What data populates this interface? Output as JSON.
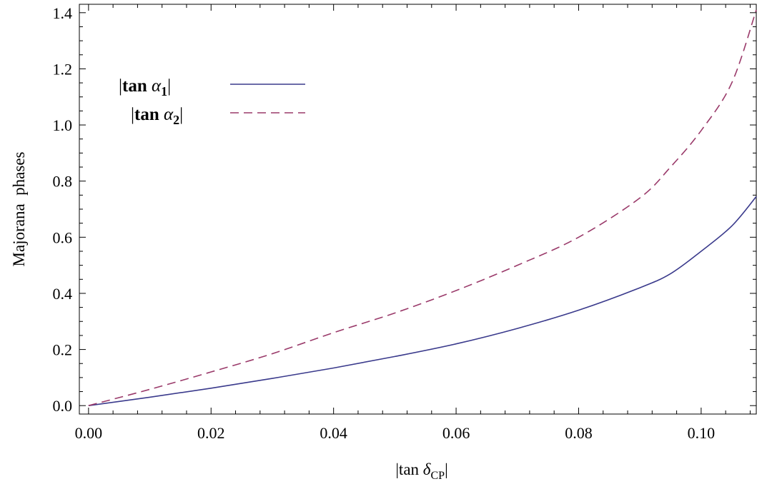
{
  "chart_data": {
    "type": "line",
    "xlabel": {
      "prefix": "|tan ",
      "symbol": "δ",
      "subscript": "CP",
      "suffix": "|"
    },
    "ylabel": "Majorana  phases",
    "xlim": [
      -0.0015,
      0.109
    ],
    "ylim": [
      -0.03,
      1.43
    ],
    "xticks": [
      "0.00",
      "0.02",
      "0.04",
      "0.06",
      "0.08",
      "0.10"
    ],
    "yticks": [
      "0.0",
      "0.2",
      "0.4",
      "0.6",
      "0.8",
      "1.0",
      "1.2",
      "1.4"
    ],
    "grid": false,
    "legend_position": "top-left",
    "series": [
      {
        "name": {
          "prefix": "|",
          "bold": "tan",
          "symbol": " α",
          "subscript": "1",
          "suffix": "|"
        },
        "style": "solid",
        "color": "#3a3a8c",
        "x": [
          0,
          0.01,
          0.02,
          0.03,
          0.04,
          0.05,
          0.06,
          0.07,
          0.08,
          0.09,
          0.095,
          0.1,
          0.105,
          0.109
        ],
        "y": [
          0,
          0.03,
          0.062,
          0.097,
          0.134,
          0.175,
          0.22,
          0.275,
          0.34,
          0.42,
          0.47,
          0.55,
          0.64,
          0.745
        ]
      },
      {
        "name": {
          "prefix": "|",
          "bold": "tan",
          "symbol": " α",
          "subscript": "2",
          "suffix": "|"
        },
        "style": "dashed",
        "color": "#9a3a6a",
        "x": [
          0,
          0.01,
          0.02,
          0.03,
          0.04,
          0.05,
          0.06,
          0.07,
          0.08,
          0.09,
          0.095,
          0.1,
          0.105,
          0.109
        ],
        "y": [
          0,
          0.058,
          0.12,
          0.185,
          0.26,
          0.33,
          0.41,
          0.5,
          0.6,
          0.74,
          0.85,
          0.98,
          1.15,
          1.41
        ]
      }
    ]
  }
}
